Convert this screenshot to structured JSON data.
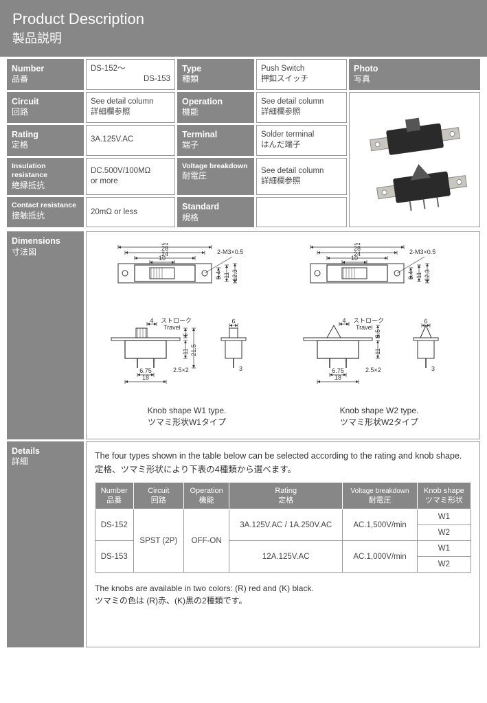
{
  "header": {
    "title_en": "Product Description",
    "title_jp": "製品説明"
  },
  "specs": {
    "number": {
      "en": "Number",
      "jp": "品番",
      "value_l1": "DS-152～",
      "value_l2": "DS-153"
    },
    "type": {
      "en": "Type",
      "jp": "種類",
      "value_l1": "Push Switch",
      "value_l2": "押釦スイッチ"
    },
    "photo": {
      "en": "Photo",
      "jp": "写真"
    },
    "circuit": {
      "en": "Circuit",
      "jp": "回路",
      "value_l1": "See detail column",
      "value_l2": "詳細欄参照"
    },
    "operation": {
      "en": "Operation",
      "jp": "機能",
      "value_l1": "See detail column",
      "value_l2": "詳細欄参照"
    },
    "rating": {
      "en": "Rating",
      "jp": "定格",
      "value_l1": "3A.125V.AC"
    },
    "terminal": {
      "en": "Terminal",
      "jp": "端子",
      "value_l1": "Solder terminal",
      "value_l2": "はんだ端子"
    },
    "insul": {
      "en": "Insulation resistance",
      "jp": "絶縁抵抗",
      "value_l1": "DC.500V/100MΩ",
      "value_l2": "or more"
    },
    "vbreak": {
      "en": "Voltage breakdown",
      "jp": "耐電圧",
      "value_l1": "See detail column",
      "value_l2": "詳細欄参照"
    },
    "contact": {
      "en": "Contact resistance",
      "jp": "接触抵抗",
      "value_l1": "20mΩ  or less"
    },
    "standard": {
      "en": "Standard",
      "jp": "規格",
      "value_l1": ""
    }
  },
  "dimensions": {
    "label_en": "Dimensions",
    "label_jp": "寸法図",
    "left_caption_en": "Knob shape W1 type.",
    "left_caption_jp": "ツマミ形状W1タイプ",
    "right_caption_en": "Knob shape W2 type.",
    "right_caption_jp": "ツマミ形状W2タイプ",
    "measurements": {
      "width_outer": "34",
      "width_mid": "28",
      "width_inner": "24",
      "slot": "10",
      "screw": "2-M3×0.5",
      "h_a": "6.4",
      "h_b": "11",
      "h_c": "12.3",
      "stroke_val": "4",
      "stroke_label_jp": "ストローク",
      "stroke_label_en": "Travel",
      "pin_w": "6",
      "pin_sp": "6.75",
      "pin_base": "18",
      "sv_a": "6",
      "sv_b": "11",
      "sv_c": "21.5",
      "sv_b2": "5.5",
      "pinhole": "2.5×2",
      "pinr": "3"
    }
  },
  "details": {
    "label_en": "Details",
    "label_jp": "詳細",
    "intro_en": "The four types shown in the table below can be selected according to the rating and knob shape.",
    "intro_jp": "定格、ツマミ形状により下表の4種類から選べます。",
    "knob_note_en": "The knobs are available in two colors: (R) red and (K) black.",
    "knob_note_jp": "ツマミの色は (R)赤、(K)黒の2種類です。",
    "table": {
      "headers": {
        "number": {
          "en": "Number",
          "jp": "品番"
        },
        "circuit": {
          "en": "Circuit",
          "jp": "回路"
        },
        "operation": {
          "en": "Operation",
          "jp": "機能"
        },
        "rating": {
          "en": "Rating",
          "jp": "定格"
        },
        "vbreak": {
          "en": "Voltage breakdown",
          "jp": "耐電圧"
        },
        "knob": {
          "en": "Knob shape",
          "jp": "ツマミ形状"
        }
      },
      "circuit_val": "SPST (2P)",
      "operation_val": "OFF-ON",
      "rows": [
        {
          "number": "DS-152",
          "rating": "3A.125V.AC / 1A.250V.AC",
          "vbreak": "AC.1,500V/min"
        },
        {
          "number": "DS-153",
          "rating": "12A.125V.AC",
          "vbreak": "AC.1,000V/min"
        }
      ],
      "knob_vals": [
        "W1",
        "W2",
        "W1",
        "W2"
      ]
    }
  },
  "colors": {
    "grey": "#878787",
    "border": "#999999",
    "text": "#333333"
  }
}
